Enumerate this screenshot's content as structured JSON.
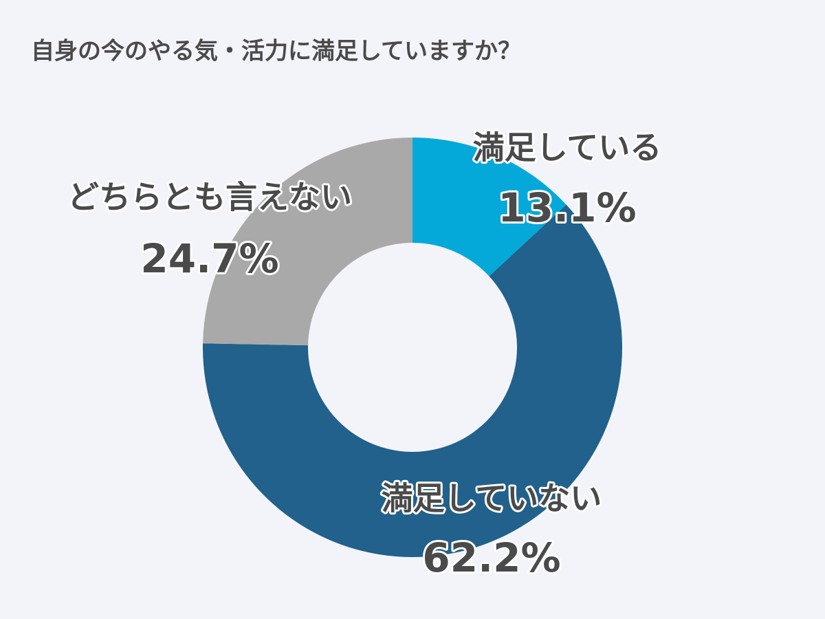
{
  "chart_data": {
    "type": "donut",
    "title": "自身の今のやる気・活力に満足していますか？",
    "categories": [
      "満足している",
      "満足していない",
      "どちらとも言えない"
    ],
    "values": [
      13.1,
      62.2,
      24.7
    ],
    "value_labels": [
      "13.1%",
      "62.2%",
      "24.7%"
    ],
    "colors": [
      "#04a9d9",
      "#21618c",
      "#a9a9a9"
    ]
  }
}
